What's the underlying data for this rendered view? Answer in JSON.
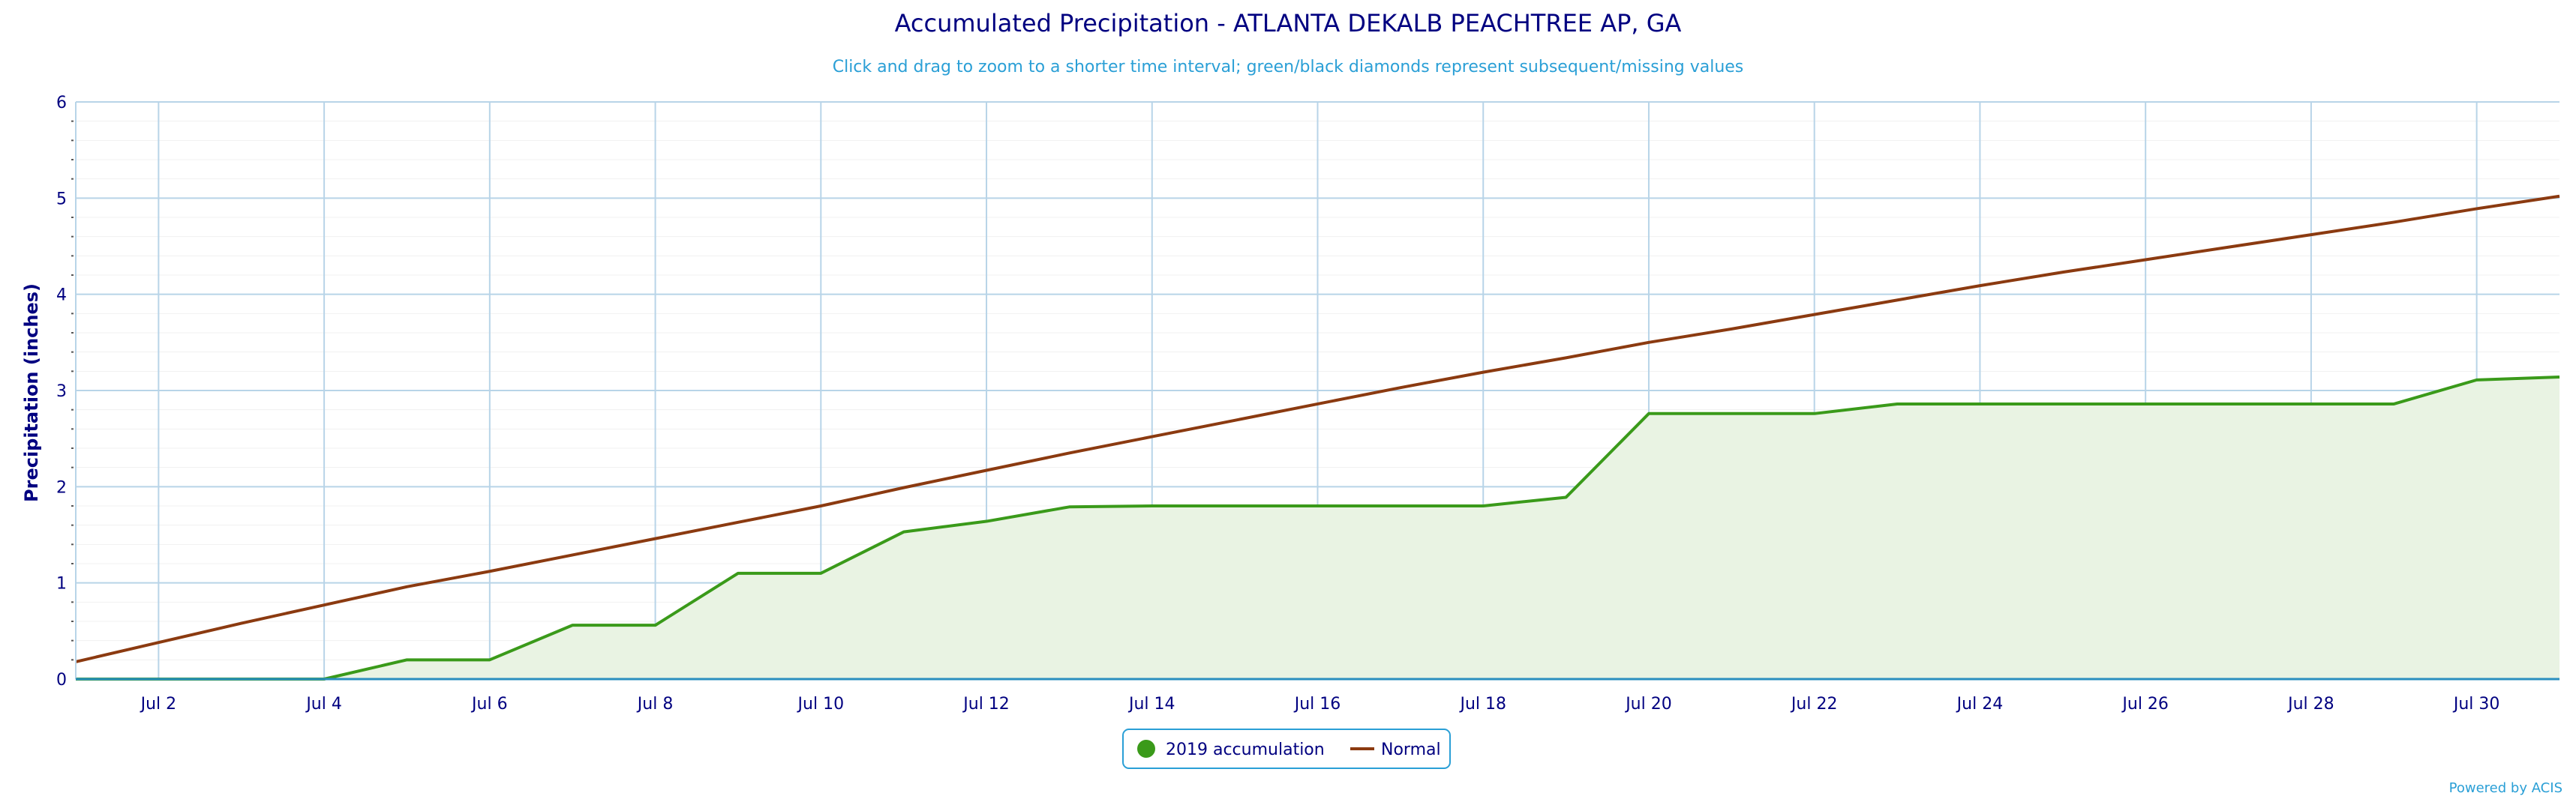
{
  "header": {
    "title": "Accumulated Precipitation - ATLANTA DEKALB PEACHTREE AP, GA",
    "subtitle": "Click and drag to zoom to a shorter time interval; green/black diamonds represent subsequent/missing values"
  },
  "credits": "Powered by ACIS",
  "colors": {
    "title": "#000080",
    "subtitle": "#2a9fd6",
    "accum_line": "#3a9a1a",
    "accum_fill": "#e9f3e3",
    "normal_line": "#8b3a10",
    "grid": "#b8d4e8",
    "axis": "#2a8fbf"
  },
  "chart_data": {
    "type": "area",
    "title": "Accumulated Precipitation - ATLANTA DEKALB PEACHTREE AP, GA",
    "ylabel": "Precipitation (inches)",
    "xlabel": "",
    "ylim": [
      0,
      6
    ],
    "yticks": [
      "0",
      "1",
      "2",
      "3",
      "4",
      "5",
      "6"
    ],
    "xlim": [
      1,
      31
    ],
    "xticks": [
      {
        "day": 2,
        "label": "Jul 2"
      },
      {
        "day": 4,
        "label": "Jul 4"
      },
      {
        "day": 6,
        "label": "Jul 6"
      },
      {
        "day": 8,
        "label": "Jul 8"
      },
      {
        "day": 10,
        "label": "Jul 10"
      },
      {
        "day": 12,
        "label": "Jul 12"
      },
      {
        "day": 14,
        "label": "Jul 14"
      },
      {
        "day": 16,
        "label": "Jul 16"
      },
      {
        "day": 18,
        "label": "Jul 18"
      },
      {
        "day": 20,
        "label": "Jul 20"
      },
      {
        "day": 22,
        "label": "Jul 22"
      },
      {
        "day": 24,
        "label": "Jul 24"
      },
      {
        "day": 26,
        "label": "Jul 26"
      },
      {
        "day": 28,
        "label": "Jul 28"
      },
      {
        "day": 30,
        "label": "Jul 30"
      }
    ],
    "grid": true,
    "legend_position": "bottom-center",
    "series": [
      {
        "name": "2019 accumulation",
        "type": "area",
        "x": [
          1,
          2,
          3,
          4,
          5,
          6,
          7,
          8,
          9,
          10,
          11,
          12,
          13,
          14,
          15,
          16,
          17,
          18,
          19,
          20,
          21,
          22,
          23,
          24,
          25,
          26,
          27,
          28,
          29,
          30,
          31
        ],
        "values": [
          0,
          0,
          0,
          0,
          0.2,
          0.2,
          0.56,
          0.56,
          1.1,
          1.1,
          1.53,
          1.64,
          1.79,
          1.8,
          1.8,
          1.8,
          1.8,
          1.8,
          1.89,
          2.76,
          2.76,
          2.76,
          2.86,
          2.86,
          2.86,
          2.86,
          2.86,
          2.86,
          2.86,
          3.11,
          3.14
        ]
      },
      {
        "name": "Normal",
        "type": "line",
        "x": [
          1,
          2,
          3,
          4,
          5,
          6,
          7,
          8,
          9,
          10,
          11,
          12,
          13,
          14,
          15,
          16,
          17,
          18,
          19,
          20,
          21,
          22,
          23,
          24,
          25,
          26,
          27,
          28,
          29,
          30,
          31
        ],
        "values": [
          0.18,
          0.38,
          0.58,
          0.77,
          0.96,
          1.12,
          1.29,
          1.46,
          1.63,
          1.8,
          1.99,
          2.17,
          2.35,
          2.52,
          2.69,
          2.86,
          3.03,
          3.19,
          3.34,
          3.5,
          3.64,
          3.79,
          3.94,
          4.09,
          4.23,
          4.36,
          4.49,
          4.62,
          4.75,
          4.89,
          5.02
        ]
      }
    ]
  }
}
